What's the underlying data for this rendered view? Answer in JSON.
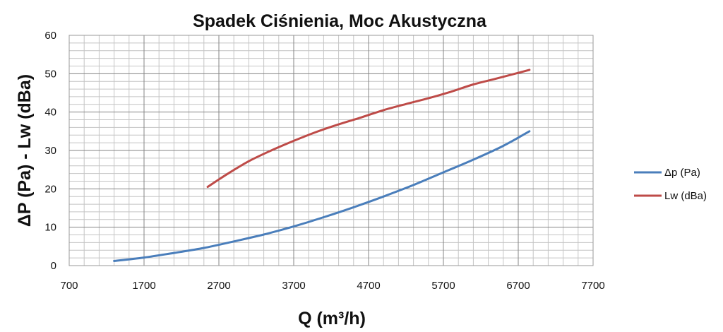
{
  "chart_data": {
    "type": "line",
    "title": "Spadek Ciśnienia, Moc Akustyczna",
    "xlabel": "Q (m³/h)",
    "ylabel": "ΔP (Pa) - Lw (dBa)",
    "xlim": [
      700,
      7700
    ],
    "ylim": [
      0,
      60
    ],
    "xticks": [
      "700",
      "1700",
      "2700",
      "3700",
      "4700",
      "5700",
      "6700",
      "7700"
    ],
    "yticks": [
      "0",
      "10",
      "20",
      "30",
      "40",
      "50",
      "60"
    ],
    "grid": true,
    "legend_position": "right",
    "series": [
      {
        "name": "Δp (Pa)",
        "color": "#4a7ebb",
        "points": [
          [
            1300,
            1.2
          ],
          [
            1700,
            2.1
          ],
          [
            2100,
            3.3
          ],
          [
            2500,
            4.6
          ],
          [
            2900,
            6.3
          ],
          [
            3300,
            8.1
          ],
          [
            3700,
            10.2
          ],
          [
            4100,
            12.6
          ],
          [
            4500,
            15.2
          ],
          [
            4900,
            18.0
          ],
          [
            5300,
            21.0
          ],
          [
            5700,
            24.3
          ],
          [
            6100,
            27.6
          ],
          [
            6500,
            31.2
          ],
          [
            6850,
            35.0
          ]
        ]
      },
      {
        "name": "Lw (dBa)",
        "color": "#be4b48",
        "points": [
          [
            2550,
            20.5
          ],
          [
            2800,
            23.7
          ],
          [
            3100,
            27.2
          ],
          [
            3400,
            30.0
          ],
          [
            3700,
            32.5
          ],
          [
            4000,
            34.8
          ],
          [
            4300,
            36.8
          ],
          [
            4600,
            38.6
          ],
          [
            4900,
            40.5
          ],
          [
            5200,
            42.1
          ],
          [
            5500,
            43.6
          ],
          [
            5800,
            45.3
          ],
          [
            6100,
            47.2
          ],
          [
            6400,
            48.7
          ],
          [
            6850,
            51.0
          ]
        ]
      }
    ]
  }
}
